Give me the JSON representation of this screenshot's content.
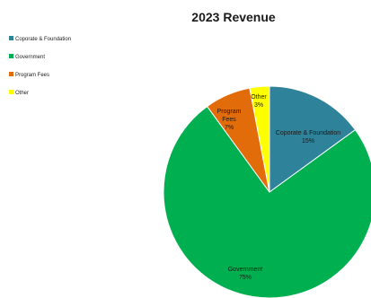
{
  "chart_data": {
    "type": "pie",
    "title": "2023 Revenue",
    "legend_position": "top-left",
    "slices": [
      {
        "label": "Coporate & Foundation",
        "value": 15,
        "pct_label": "15%",
        "color": "#2E8299",
        "label_lines": [
          "Coporate & Foundation",
          "15%"
        ],
        "label_color": "#1a1a1a"
      },
      {
        "label": "Government",
        "value": 75,
        "pct_label": "75%",
        "color": "#00B050",
        "label_lines": [
          "Government",
          "75%"
        ],
        "label_color": "#1a1a1a"
      },
      {
        "label": "Program Fees",
        "value": 7,
        "pct_label": "7%",
        "color": "#E36C0A",
        "label_lines": [
          "Program",
          "Fees",
          "7%"
        ],
        "label_color": "#1a1a1a"
      },
      {
        "label": "Other",
        "value": 3,
        "pct_label": "3%",
        "color": "#FFFF00",
        "label_lines": [
          "Other",
          "3%"
        ],
        "label_color": "#1a1a1a"
      }
    ]
  }
}
